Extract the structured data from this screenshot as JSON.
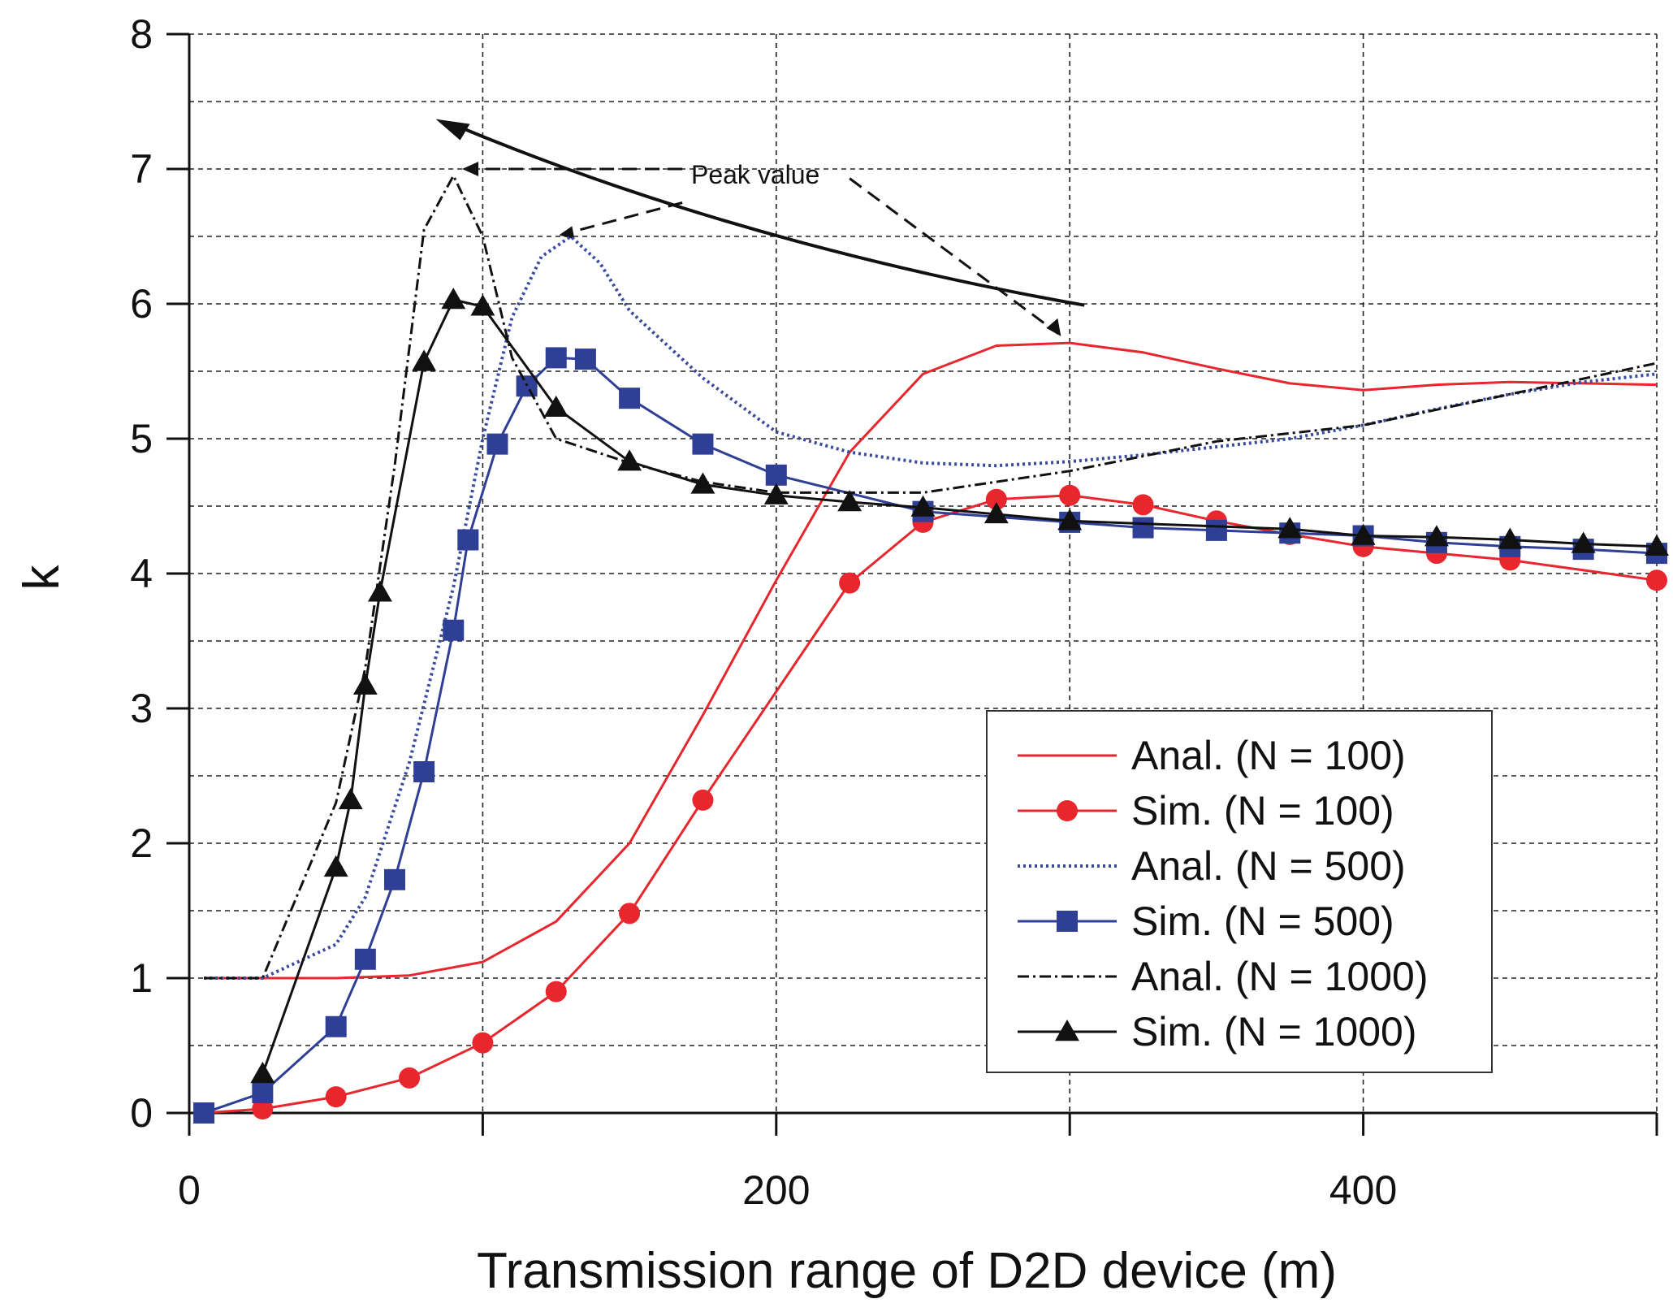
{
  "chart_data": {
    "type": "line",
    "title": "",
    "xlabel": "Transmission range of D2D device (m)",
    "ylabel": "k",
    "xlim": [
      0,
      500
    ],
    "ylim": [
      0,
      8
    ],
    "x_ticks": [
      0,
      200,
      400
    ],
    "y_ticks": [
      0,
      1,
      2,
      3,
      4,
      5,
      6,
      7,
      8
    ],
    "x_tick_labels": [
      "0",
      "200",
      "400"
    ],
    "y_tick_labels": [
      "0",
      "1",
      "2",
      "3",
      "4",
      "5",
      "6",
      "7",
      "8"
    ],
    "grid": true,
    "legend_position": "bottom-right",
    "annotation": "Peak value",
    "series": [
      {
        "name": "Anal. (N = 100)",
        "style": "solid",
        "color": "#e8262d",
        "marker": "none",
        "x": [
          5,
          25,
          50,
          75,
          100,
          125,
          150,
          175,
          200,
          225,
          250,
          275,
          300,
          325,
          350,
          375,
          400,
          425,
          450,
          475,
          500
        ],
        "y": [
          1.0,
          1.0,
          1.0,
          1.02,
          1.12,
          1.42,
          2.0,
          2.95,
          3.95,
          4.9,
          5.48,
          5.69,
          5.71,
          5.64,
          5.52,
          5.41,
          5.36,
          5.4,
          5.42,
          5.41,
          5.4
        ]
      },
      {
        "name": "Sim.  (N = 100)",
        "style": "solid",
        "color": "#e8262d",
        "marker": "circle",
        "x": [
          5,
          25,
          50,
          75,
          100,
          125,
          150,
          175,
          225,
          250,
          275,
          300,
          325,
          350,
          375,
          400,
          425,
          450,
          500
        ],
        "y": [
          0.0,
          0.03,
          0.12,
          0.26,
          0.52,
          0.9,
          1.48,
          2.32,
          3.93,
          4.38,
          4.55,
          4.58,
          4.51,
          4.39,
          4.29,
          4.2,
          4.15,
          4.1,
          3.95
        ]
      },
      {
        "name": "Anal. (N = 500)",
        "style": "dotted",
        "color": "#3a4a9c",
        "marker": "none",
        "x": [
          5,
          25,
          50,
          60,
          75,
          90,
          100,
          110,
          120,
          130,
          140,
          150,
          175,
          200,
          225,
          250,
          275,
          300,
          325,
          350,
          375,
          400,
          425,
          450,
          475,
          500
        ],
        "y": [
          1.0,
          1.0,
          1.25,
          1.6,
          2.6,
          3.9,
          5.0,
          5.9,
          6.35,
          6.5,
          6.3,
          5.95,
          5.45,
          5.05,
          4.9,
          4.82,
          4.8,
          4.83,
          4.88,
          4.94,
          5.0,
          5.1,
          5.22,
          5.33,
          5.42,
          5.48
        ]
      },
      {
        "name": "Sim.  (N = 500)",
        "style": "solid",
        "color": "#2e3f95",
        "marker": "square",
        "x": [
          5,
          25,
          50,
          60,
          70,
          80,
          90,
          95,
          105,
          115,
          125,
          135,
          150,
          175,
          200,
          250,
          300,
          325,
          350,
          375,
          400,
          425,
          450,
          475,
          500
        ],
        "y": [
          0.0,
          0.15,
          0.64,
          1.14,
          1.73,
          2.53,
          3.58,
          4.25,
          4.96,
          5.39,
          5.6,
          5.59,
          5.3,
          4.96,
          4.73,
          4.46,
          4.38,
          4.34,
          4.32,
          4.3,
          4.28,
          4.23,
          4.2,
          4.18,
          4.15
        ]
      },
      {
        "name": "Anal. (N = 1000)",
        "style": "dashdot",
        "color": "#111111",
        "marker": "none",
        "x": [
          5,
          25,
          50,
          60,
          70,
          80,
          90,
          100,
          110,
          125,
          150,
          175,
          200,
          250,
          300,
          350,
          400,
          450,
          500
        ],
        "y": [
          1.0,
          1.0,
          2.3,
          3.3,
          4.8,
          6.55,
          6.95,
          6.5,
          5.6,
          5.0,
          4.82,
          4.68,
          4.6,
          4.6,
          4.76,
          4.98,
          5.1,
          5.33,
          5.56
        ]
      },
      {
        "name": "Sim.  (N = 1000)",
        "style": "solid",
        "color": "#111111",
        "marker": "triangle",
        "x": [
          25,
          50,
          55,
          60,
          65,
          80,
          90,
          100,
          125,
          150,
          175,
          200,
          225,
          250,
          275,
          300,
          375,
          400,
          425,
          450,
          475,
          500
        ],
        "y": [
          0.29,
          1.82,
          2.32,
          3.17,
          3.86,
          5.57,
          6.03,
          5.98,
          5.23,
          4.83,
          4.66,
          4.58,
          4.53,
          4.49,
          4.44,
          4.39,
          4.33,
          4.28,
          4.27,
          4.25,
          4.22,
          4.2
        ]
      }
    ]
  }
}
